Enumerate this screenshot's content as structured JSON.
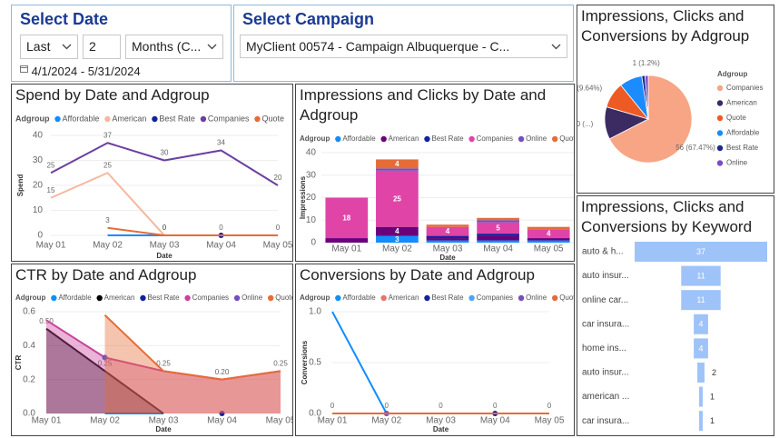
{
  "filters": {
    "date": {
      "title": "Select Date",
      "period": "Last",
      "count": 2,
      "unit": "Months (C...",
      "range": "4/1/2024 - 5/31/2024"
    },
    "campaign": {
      "title": "Select Campaign",
      "value": "MyClient 00574 - Campaign Albuquerque - C..."
    }
  },
  "chart_data": [
    {
      "type": "line",
      "title": "Spend by Date and Adgroup",
      "legend_title": "Adgroup",
      "categories": [
        "May 01",
        "May 02",
        "May 03",
        "May 04",
        "May 05"
      ],
      "x_label": "Date",
      "y_label": "Spend",
      "ylim": [
        0,
        40
      ],
      "yticks": [
        0,
        10,
        20,
        30,
        40
      ],
      "grid": true,
      "series": [
        {
          "name": "Affordable",
          "color": "#118DFF",
          "values": [
            null,
            0,
            0,
            0,
            0
          ],
          "data_labels": false
        },
        {
          "name": "American",
          "color": "#F6B7A0",
          "values": [
            15,
            25,
            0,
            null,
            null
          ],
          "data_labels": true
        },
        {
          "name": "Best Rate",
          "color": "#12239E",
          "values": [
            null,
            null,
            null,
            0,
            null
          ],
          "data_labels": false
        },
        {
          "name": "Companies",
          "color": "#6B3FA0",
          "values": [
            25,
            37,
            30,
            34,
            20
          ],
          "data_labels": true
        },
        {
          "name": "Quote",
          "color": "#E66C37",
          "values": [
            null,
            3,
            0,
            0,
            0
          ],
          "data_labels": true
        }
      ]
    },
    {
      "type": "stacked_bar",
      "title": "Impressions and Clicks by Date and Adgroup",
      "legend_title": "Adgroup",
      "categories": [
        "May 01",
        "May 02",
        "May 03",
        "May 04",
        "May 05"
      ],
      "x_label": "Date",
      "y_label": "Impressions",
      "ylim": [
        0,
        40
      ],
      "yticks": [
        0,
        10,
        20,
        30,
        40
      ],
      "grid": true,
      "series": [
        {
          "name": "Affordable",
          "color": "#118DFF",
          "values": [
            0,
            3,
            1,
            1,
            1
          ],
          "data_labels": true
        },
        {
          "name": "American",
          "color": "#6B007B",
          "values": [
            2,
            4,
            1,
            2,
            1
          ],
          "data_labels": true
        },
        {
          "name": "Best Rate",
          "color": "#12239E",
          "values": [
            0,
            0,
            1,
            1,
            0
          ],
          "data_labels": true
        },
        {
          "name": "Companies",
          "color": "#E044A7",
          "values": [
            18,
            25,
            4,
            5,
            4
          ],
          "data_labels": true
        },
        {
          "name": "Online",
          "color": "#744EC2",
          "values": [
            0,
            1,
            0,
            1,
            0
          ],
          "data_labels": true
        },
        {
          "name": "Quote",
          "color": "#E66C37",
          "values": [
            0,
            4,
            1,
            1,
            1
          ],
          "data_labels": true
        }
      ]
    },
    {
      "type": "area",
      "title": "CTR by Date and Adgroup",
      "legend_title": "Adgroup",
      "categories": [
        "May 01",
        "May 02",
        "May 03",
        "May 04",
        "May 05"
      ],
      "x_label": "Date",
      "y_label": "CTR",
      "ylim": [
        0,
        0.6
      ],
      "yticks": [
        {
          "value": 0,
          "label": "0.0"
        },
        {
          "value": 0.2,
          "label": "0.2"
        },
        {
          "value": 0.4,
          "label": "0.4"
        },
        {
          "value": 0.6,
          "label": "0.6"
        }
      ],
      "grid": true,
      "series": [
        {
          "name": "Affordable",
          "color": "#118DFF",
          "values": [
            null,
            0,
            0,
            null,
            null
          ]
        },
        {
          "name": "American",
          "color": "#000000",
          "values": [
            0.5,
            0.25,
            0,
            null,
            null
          ],
          "value_labels": [
            "0.50",
            "0.25",
            null,
            null,
            null
          ]
        },
        {
          "name": "Best Rate",
          "color": "#12239E",
          "values": [
            null,
            null,
            null,
            0,
            null
          ]
        },
        {
          "name": "Companies",
          "color": "#C8449A",
          "values": [
            0.55,
            0.33,
            0.25,
            0.2,
            0.25
          ],
          "value_labels": [
            null,
            null,
            "0.25",
            "0.20",
            "0.25"
          ]
        },
        {
          "name": "Online",
          "color": "#744EC2",
          "values": [
            null,
            0.33,
            null,
            null,
            null
          ]
        },
        {
          "name": "Quote",
          "color": "#E66C37",
          "values": [
            null,
            0.58,
            0.25,
            0.2,
            0.25
          ]
        }
      ]
    },
    {
      "type": "line",
      "title": "Conversions by Date and Adgroup",
      "legend_title": "Adgroup",
      "categories": [
        "May 01",
        "May 02",
        "May 03",
        "May 04",
        "May 05"
      ],
      "x_label": "Date",
      "y_label": "Conversions",
      "ylim": [
        0,
        1
      ],
      "yticks": [
        {
          "value": 0,
          "label": "0.0"
        },
        {
          "value": 0.5,
          "label": "0.5"
        },
        {
          "value": 1,
          "label": "1.0"
        }
      ],
      "grid": true,
      "series": [
        {
          "name": "Affordable",
          "color": "#118DFF",
          "values": [
            1,
            0,
            null,
            null,
            null
          ],
          "data_labels": false
        },
        {
          "name": "American",
          "color": "#E8736B",
          "values": [
            0,
            0,
            0,
            0,
            0
          ],
          "data_labels": false
        },
        {
          "name": "Best Rate",
          "color": "#12239E",
          "values": [
            null,
            null,
            null,
            0,
            null
          ],
          "data_labels": false
        },
        {
          "name": "Companies",
          "color": "#4FA3F7",
          "values": [
            0,
            0,
            0,
            0,
            0
          ],
          "data_labels": false
        },
        {
          "name": "Online",
          "color": "#744EC2",
          "values": [
            null,
            0,
            null,
            null,
            null
          ],
          "data_labels": false
        },
        {
          "name": "Quote",
          "color": "#E66C37",
          "values": [
            0,
            0,
            0,
            0,
            0
          ],
          "data_labels": true
        }
      ]
    },
    {
      "type": "pie",
      "title": "Impressions, Clicks and Conversions by Adgroup",
      "legend_title": "Adgroup",
      "categories": [
        "Companies",
        "American",
        "Quote",
        "Affordable",
        "Best Rate",
        "Online"
      ],
      "values": [
        56,
        10,
        8,
        7,
        1,
        1
      ],
      "colors": [
        "#F7A584",
        "#3C2A63",
        "#EE5A24",
        "#1A8CFF",
        "#1B2A8A",
        "#7B4CC6"
      ],
      "value_labels": [
        "56 (67.47%)",
        "10 (...)",
        "8 (9.64%)",
        null,
        null,
        "1 (1.2%)"
      ]
    },
    {
      "type": "funnel",
      "title": "Impressions, Clicks and Conversions by Keyword",
      "categories": [
        "auto & h...",
        "auto insur...",
        "online car...",
        "car insura...",
        "home ins...",
        "auto insur...",
        "american ...",
        "car insura..."
      ],
      "values": [
        37,
        11,
        11,
        4,
        4,
        2,
        1,
        1
      ],
      "color": "#9EC3F8"
    }
  ]
}
